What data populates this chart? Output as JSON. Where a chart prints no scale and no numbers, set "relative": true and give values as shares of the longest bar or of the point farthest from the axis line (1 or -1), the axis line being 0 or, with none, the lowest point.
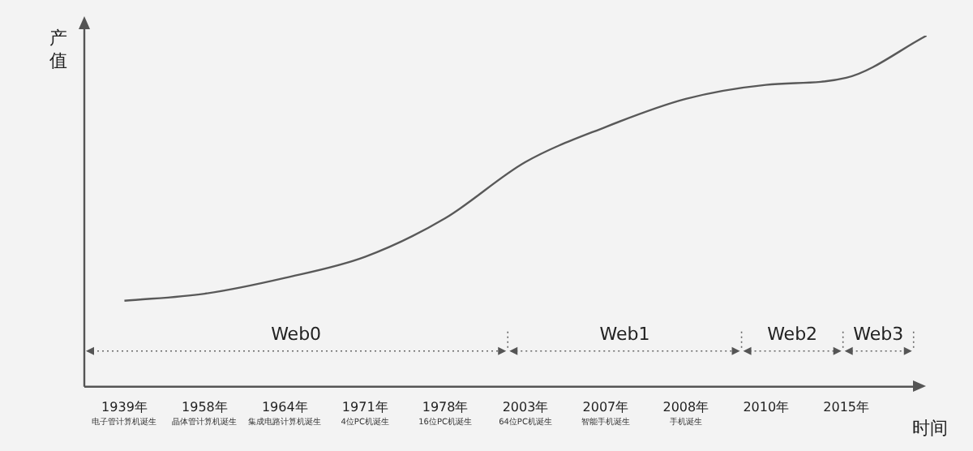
{
  "chart_data": {
    "type": "line",
    "relative": true,
    "xlabel": "时间",
    "ylabel": "产值",
    "categories": [
      "1939年",
      "1958年",
      "1964年",
      "1971年",
      "1978年",
      "2003年",
      "2007年",
      "2008年",
      "2010年",
      "2015年",
      null
    ],
    "values": [
      0.245,
      0.265,
      0.31,
      0.37,
      0.48,
      0.64,
      0.74,
      0.82,
      0.86,
      0.88,
      1.0
    ],
    "color": "#595959",
    "marker": "none",
    "line_style": "solid",
    "grid": false,
    "legend": false,
    "annotations": [
      "Web0",
      "Web1",
      "Web2",
      "Web3",
      "电子管计算机诞生",
      "晶体管计算机诞生",
      "集成电路计算机诞生",
      "4位PC机诞生",
      "16位PC机诞生",
      "64位PC机诞生",
      "智能手机诞生",
      "手机诞生"
    ]
  }
}
